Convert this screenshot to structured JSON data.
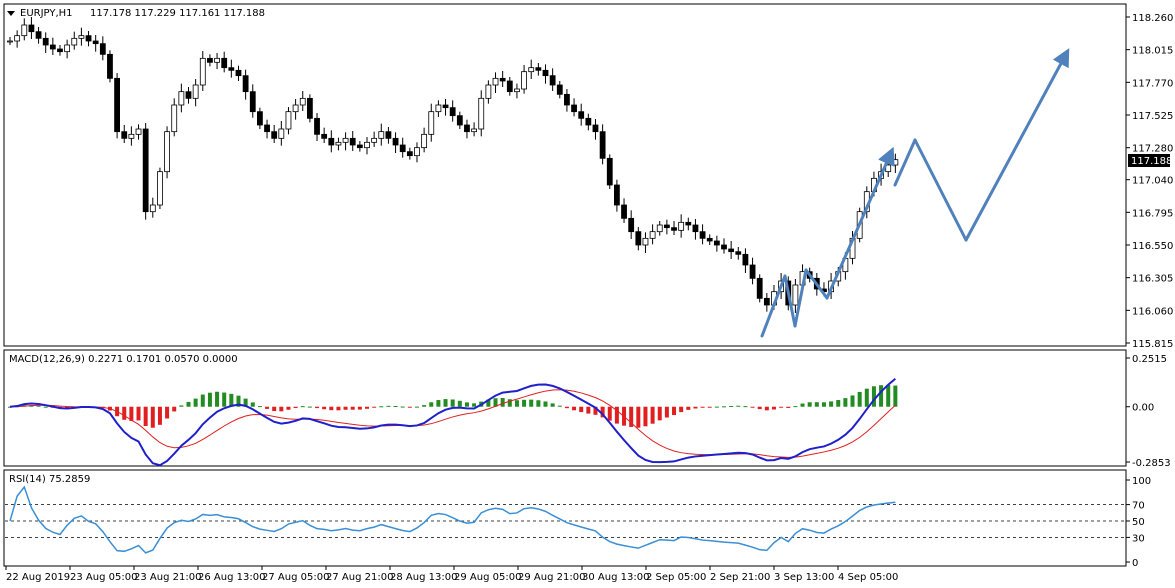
{
  "chart_data": [
    {
      "type": "candlestick",
      "symbol_label": "EURJPY,H1",
      "ohlc_label": "117.178 117.229 117.161 117.188",
      "last_price_label": "117.188",
      "y_ticks": [
        "118.260",
        "118.015",
        "117.770",
        "117.525",
        "117.280",
        "117.040",
        "116.795",
        "116.550",
        "116.305",
        "116.060",
        "115.815"
      ],
      "ylim": [
        115.815,
        118.26
      ],
      "colors": {
        "bull": "#000000",
        "bear": "#000000",
        "projection": "#4f81bd",
        "price_box": "#000000"
      },
      "x_ticks": [
        "22 Aug 2019",
        "23 Aug 05:00",
        "23 Aug 21:00",
        "26 Aug 13:00",
        "27 Aug 05:00",
        "27 Aug 21:00",
        "28 Aug 13:00",
        "29 Aug 05:00",
        "29 Aug 21:00",
        "30 Aug 13:00",
        "2 Sep 05:00",
        "2 Sep 21:00",
        "3 Sep 13:00",
        "4 Sep 05:00"
      ],
      "close_path": [
        118.08,
        118.12,
        118.2,
        118.15,
        118.1,
        118.05,
        118.02,
        118.0,
        118.05,
        118.1,
        118.12,
        118.08,
        118.06,
        117.98,
        117.8,
        117.4,
        117.35,
        117.38,
        117.42,
        116.8,
        116.85,
        117.1,
        117.4,
        117.6,
        117.7,
        117.65,
        117.75,
        117.95,
        117.92,
        117.95,
        117.88,
        117.86,
        117.82,
        117.7,
        117.55,
        117.45,
        117.4,
        117.35,
        117.42,
        117.55,
        117.6,
        117.65,
        117.5,
        117.38,
        117.35,
        117.3,
        117.32,
        117.35,
        117.3,
        117.28,
        117.32,
        117.35,
        117.4,
        117.35,
        117.3,
        117.25,
        117.22,
        117.28,
        117.38,
        117.55,
        117.6,
        117.58,
        117.52,
        117.45,
        117.4,
        117.42,
        117.65,
        117.75,
        117.8,
        117.78,
        117.7,
        117.72,
        117.85,
        117.88,
        117.86,
        117.82,
        117.75,
        117.68,
        117.6,
        117.55,
        117.5,
        117.45,
        117.4,
        117.2,
        117.0,
        116.85,
        116.75,
        116.65,
        116.55,
        116.6,
        116.65,
        116.7,
        116.68,
        116.66,
        116.72,
        116.7,
        116.65,
        116.6,
        116.58,
        116.55,
        116.52,
        116.5,
        116.48,
        116.4,
        116.3,
        116.15,
        116.1,
        116.2,
        116.28,
        116.1,
        116.25,
        116.35,
        116.3,
        116.22,
        116.2,
        116.28,
        116.35,
        116.45,
        116.6,
        116.8,
        116.95,
        117.05,
        117.1,
        117.15,
        117.19
      ],
      "projection_arrows": [
        {
          "from": [
            762,
            336
          ],
          "to": [
            785,
            276
          ]
        },
        {
          "from": [
            785,
            276
          ],
          "to": [
            795,
            326
          ]
        },
        {
          "from": [
            795,
            326
          ],
          "to": [
            806,
            270
          ]
        },
        {
          "from": [
            806,
            270
          ],
          "to": [
            827,
            298
          ]
        },
        {
          "from": [
            827,
            298
          ],
          "to": [
            890,
            155
          ]
        },
        {
          "from": [
            895,
            185
          ],
          "to": [
            915,
            140
          ]
        },
        {
          "from": [
            915,
            140
          ],
          "to": [
            966,
            240
          ]
        },
        {
          "from": [
            966,
            240
          ],
          "to": [
            1065,
            56
          ]
        }
      ]
    },
    {
      "type": "line+bar",
      "label": "MACD(12,26,9) 0.2271 0.1701 0.0570 0.0000",
      "y_ticks": [
        "0.2515",
        "0.00",
        "-0.2853"
      ],
      "colors": {
        "macd": "#1f1fcc",
        "signal": "#e02020",
        "hist_pos": "#228b22",
        "hist_neg": "#e02020"
      }
    },
    {
      "type": "line",
      "label": "RSI(14) 75.2859",
      "y_ticks": [
        "100",
        "70",
        "50",
        "30",
        "0"
      ],
      "levels": [
        70,
        50,
        30
      ],
      "colors": {
        "rsi": "#3a8fd6"
      }
    }
  ]
}
